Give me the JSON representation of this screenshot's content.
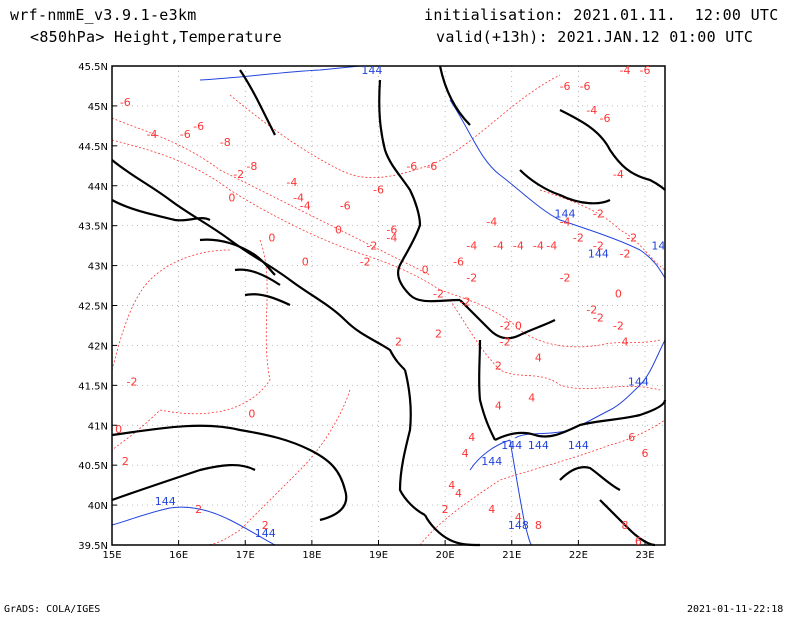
{
  "header": {
    "model": "wrf-nmmE_v3.9.1-e3km",
    "init": "initialisation: 2021.01.11.  12:00 UTC",
    "field": "<850hPa> Height,Temperature",
    "valid": "valid(+13h): 2021.JAN.12 01:00 UTC"
  },
  "footer": {
    "left": "GrADS: COLA/IGES",
    "right": "2021-01-11-22:18"
  },
  "map": {
    "lon_range": [
      15,
      23.3
    ],
    "lat_range": [
      39.5,
      45.5
    ],
    "lon_ticks": [
      "15E",
      "16E",
      "17E",
      "18E",
      "19E",
      "20E",
      "21E",
      "22E",
      "23E"
    ],
    "lat_ticks": [
      "45.5N",
      "45N",
      "44.5N",
      "44N",
      "43.5N",
      "43N",
      "42.5N",
      "42N",
      "41.5N",
      "41N",
      "40.5N",
      "40N",
      "39.5N"
    ],
    "colors": {
      "temperature": "#ff3333",
      "height": "#2244dd",
      "coast": "#000000",
      "grid": "#999999"
    },
    "temperature_labels": [
      {
        "t": "-6",
        "lon": 15.2,
        "lat": 45.0
      },
      {
        "t": "-4",
        "lon": 15.6,
        "lat": 44.6
      },
      {
        "t": "-6",
        "lon": 16.1,
        "lat": 44.6
      },
      {
        "t": "-6",
        "lon": 16.3,
        "lat": 44.7
      },
      {
        "t": "-8",
        "lon": 16.7,
        "lat": 44.5
      },
      {
        "t": "-2",
        "lon": 16.9,
        "lat": 44.1
      },
      {
        "t": "-8",
        "lon": 17.1,
        "lat": 44.2
      },
      {
        "t": "-4",
        "lon": 17.7,
        "lat": 44.0
      },
      {
        "t": "-4",
        "lon": 17.8,
        "lat": 43.8
      },
      {
        "t": "0",
        "lon": 16.8,
        "lat": 43.8
      },
      {
        "t": "-4",
        "lon": 17.9,
        "lat": 43.7
      },
      {
        "t": "-6",
        "lon": 18.5,
        "lat": 43.7
      },
      {
        "t": "-6",
        "lon": 19.2,
        "lat": 43.4
      },
      {
        "t": "-6",
        "lon": 19.0,
        "lat": 43.9
      },
      {
        "t": "-6",
        "lon": 19.5,
        "lat": 44.2
      },
      {
        "t": "-6",
        "lon": 19.8,
        "lat": 44.2
      },
      {
        "t": "0",
        "lon": 18.4,
        "lat": 43.4
      },
      {
        "t": "-2",
        "lon": 18.9,
        "lat": 43.2
      },
      {
        "t": "-4",
        "lon": 19.2,
        "lat": 43.3
      },
      {
        "t": "0",
        "lon": 17.4,
        "lat": 43.3
      },
      {
        "t": "0",
        "lon": 17.9,
        "lat": 43.0
      },
      {
        "t": "-2",
        "lon": 18.8,
        "lat": 43.0
      },
      {
        "t": "0",
        "lon": 19.7,
        "lat": 42.9
      },
      {
        "t": "-6",
        "lon": 20.2,
        "lat": 43.0
      },
      {
        "t": "-2",
        "lon": 20.4,
        "lat": 42.8
      },
      {
        "t": "-4",
        "lon": 20.4,
        "lat": 43.2
      },
      {
        "t": "-4",
        "lon": 20.7,
        "lat": 43.5
      },
      {
        "t": "-4",
        "lon": 20.8,
        "lat": 43.2
      },
      {
        "t": "-4",
        "lon": 21.1,
        "lat": 43.2
      },
      {
        "t": "-4",
        "lon": 21.4,
        "lat": 43.2
      },
      {
        "t": "-4",
        "lon": 21.6,
        "lat": 43.2
      },
      {
        "t": "-4",
        "lon": 21.8,
        "lat": 43.5
      },
      {
        "t": "-2",
        "lon": 22.0,
        "lat": 43.3
      },
      {
        "t": "-2",
        "lon": 22.3,
        "lat": 43.6
      },
      {
        "t": "-2",
        "lon": 22.3,
        "lat": 43.2
      },
      {
        "t": "-2",
        "lon": 22.8,
        "lat": 43.3
      },
      {
        "t": "-2",
        "lon": 22.7,
        "lat": 43.1
      },
      {
        "t": "-4",
        "lon": 22.6,
        "lat": 44.1
      },
      {
        "t": "-6",
        "lon": 21.8,
        "lat": 45.2
      },
      {
        "t": "-6",
        "lon": 22.1,
        "lat": 45.2
      },
      {
        "t": "-4",
        "lon": 22.7,
        "lat": 45.4
      },
      {
        "t": "-6",
        "lon": 23.0,
        "lat": 45.4
      },
      {
        "t": "-4",
        "lon": 22.2,
        "lat": 44.9
      },
      {
        "t": "-6",
        "lon": 22.4,
        "lat": 44.8
      },
      {
        "t": "-2",
        "lon": 19.9,
        "lat": 42.6
      },
      {
        "t": "-2",
        "lon": 20.3,
        "lat": 42.5
      },
      {
        "t": "-2",
        "lon": 21.8,
        "lat": 42.8
      },
      {
        "t": "-2",
        "lon": 20.9,
        "lat": 42.2
      },
      {
        "t": "0",
        "lon": 21.1,
        "lat": 42.2
      },
      {
        "t": "-2",
        "lon": 22.3,
        "lat": 42.3
      },
      {
        "t": "0",
        "lon": 22.6,
        "lat": 42.6
      },
      {
        "t": "-2",
        "lon": 22.6,
        "lat": 42.2
      },
      {
        "t": "-2",
        "lon": 22.2,
        "lat": 42.4
      },
      {
        "t": "-2",
        "lon": 20.9,
        "lat": 42.0
      },
      {
        "t": "2",
        "lon": 19.3,
        "lat": 42.0
      },
      {
        "t": "2",
        "lon": 19.9,
        "lat": 42.1
      },
      {
        "t": "2",
        "lon": 20.8,
        "lat": 41.7
      },
      {
        "t": "4",
        "lon": 21.4,
        "lat": 41.8
      },
      {
        "t": "4",
        "lon": 22.7,
        "lat": 42.0
      },
      {
        "t": "4",
        "lon": 20.8,
        "lat": 41.2
      },
      {
        "t": "4",
        "lon": 21.3,
        "lat": 41.3
      },
      {
        "t": "-2",
        "lon": 15.3,
        "lat": 41.5
      },
      {
        "t": "0",
        "lon": 15.1,
        "lat": 40.9
      },
      {
        "t": "0",
        "lon": 17.1,
        "lat": 41.1
      },
      {
        "t": "2",
        "lon": 15.2,
        "lat": 40.5
      },
      {
        "t": "4",
        "lon": 20.4,
        "lat": 40.8
      },
      {
        "t": "4",
        "lon": 20.3,
        "lat": 40.6
      },
      {
        "t": "4",
        "lon": 20.1,
        "lat": 40.2
      },
      {
        "t": "4",
        "lon": 20.2,
        "lat": 40.1
      },
      {
        "t": "4",
        "lon": 20.7,
        "lat": 39.9
      },
      {
        "t": "2",
        "lon": 20.0,
        "lat": 39.9
      },
      {
        "t": "2",
        "lon": 16.3,
        "lat": 39.9
      },
      {
        "t": "2",
        "lon": 17.3,
        "lat": 39.7
      },
      {
        "t": "4",
        "lon": 21.1,
        "lat": 39.8
      },
      {
        "t": "6",
        "lon": 22.8,
        "lat": 40.8
      },
      {
        "t": "6",
        "lon": 23.0,
        "lat": 40.6
      },
      {
        "t": "8",
        "lon": 21.4,
        "lat": 39.7
      },
      {
        "t": "8",
        "lon": 22.7,
        "lat": 39.7
      },
      {
        "t": "6",
        "lon": 22.9,
        "lat": 39.5
      }
    ],
    "height_labels": [
      {
        "t": "144",
        "lon": 18.9,
        "lat": 45.4
      },
      {
        "t": "144",
        "lon": 21.8,
        "lat": 43.6
      },
      {
        "t": "144",
        "lon": 22.3,
        "lat": 43.1
      },
      {
        "t": "14",
        "lon": 23.2,
        "lat": 43.2
      },
      {
        "t": "144",
        "lon": 22.9,
        "lat": 41.5
      },
      {
        "t": "144",
        "lon": 21.0,
        "lat": 40.7
      },
      {
        "t": "144",
        "lon": 21.4,
        "lat": 40.7
      },
      {
        "t": "144",
        "lon": 22.0,
        "lat": 40.7
      },
      {
        "t": "144",
        "lon": 20.7,
        "lat": 40.5
      },
      {
        "t": "144",
        "lon": 15.8,
        "lat": 40.0
      },
      {
        "t": "144",
        "lon": 17.3,
        "lat": 39.6
      },
      {
        "t": "148",
        "lon": 21.1,
        "lat": 39.7
      }
    ]
  }
}
